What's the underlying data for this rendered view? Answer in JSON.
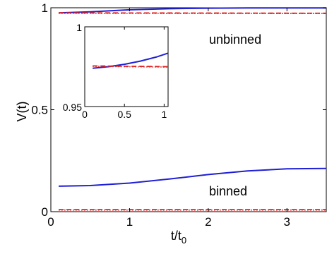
{
  "chart_data": [
    {
      "type": "line",
      "role": "main",
      "xlabel": "t/t",
      "xlabel_sub": "0",
      "ylabel": "V(t)",
      "xlim": [
        0,
        3.5
      ],
      "ylim": [
        0,
        1
      ],
      "xticks": [
        0,
        1,
        2,
        3
      ],
      "xtick_labels": [
        "0",
        "1",
        "2",
        "3"
      ],
      "yticks": [
        0,
        0.5,
        1
      ],
      "ytick_labels": [
        "0",
        "0.5",
        "1"
      ],
      "grid": false,
      "annotations": [
        "unbinned",
        "binned"
      ],
      "series": [
        {
          "style": "solid",
          "color": "#1f1fd6",
          "x": [
            0.1,
            0.5,
            1.0,
            1.5,
            2.0,
            2.5,
            3.0,
            3.5
          ],
          "y": [
            0.975,
            0.98,
            0.99,
            0.995,
            0.998,
            0.999,
            0.999,
            0.999
          ]
        },
        {
          "style": "dashed",
          "color": "#e02020",
          "x": [
            0.1,
            3.5
          ],
          "y": [
            0.975,
            0.973
          ]
        },
        {
          "style": "dotted",
          "color": "#e02020",
          "x": [
            0.1,
            3.5
          ],
          "y": [
            0.973,
            0.972
          ]
        },
        {
          "style": "solid",
          "color": "#1f1fd6",
          "x": [
            0.1,
            0.5,
            1.0,
            1.5,
            2.0,
            2.5,
            3.0,
            3.5
          ],
          "y": [
            0.125,
            0.128,
            0.14,
            0.16,
            0.182,
            0.2,
            0.21,
            0.212
          ]
        },
        {
          "style": "dashed",
          "color": "#e02020",
          "x": [
            0.1,
            3.5
          ],
          "y": [
            0.01,
            0.01
          ]
        },
        {
          "style": "dotted",
          "color": "#e02020",
          "x": [
            0.1,
            3.5
          ],
          "y": [
            0.008,
            0.008
          ]
        }
      ]
    },
    {
      "type": "line",
      "role": "inset",
      "xlim": [
        0,
        1.05
      ],
      "ylim": [
        0.95,
        1
      ],
      "xticks": [
        0,
        0.5,
        1
      ],
      "xtick_labels": [
        "0",
        "0.5",
        "1"
      ],
      "yticks": [
        0.95,
        1
      ],
      "ytick_labels": [
        "0.95",
        "1"
      ],
      "series": [
        {
          "style": "solid",
          "color": "#1f1fd6",
          "x": [
            0.1,
            0.3,
            0.5,
            0.7,
            0.9,
            1.05
          ],
          "y": [
            0.974,
            0.975,
            0.9765,
            0.9785,
            0.981,
            0.9835
          ]
        },
        {
          "style": "dashed",
          "color": "#e02020",
          "x": [
            0.1,
            1.05
          ],
          "y": [
            0.9755,
            0.975
          ]
        },
        {
          "style": "dotted",
          "color": "#e02020",
          "x": [
            0.1,
            1.05
          ],
          "y": [
            0.9752,
            0.9748
          ]
        }
      ]
    }
  ]
}
